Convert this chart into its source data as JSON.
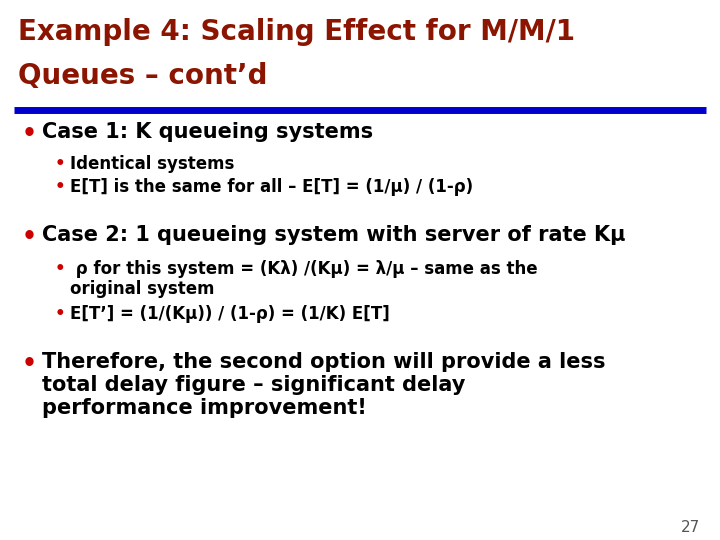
{
  "title_line1": "Example 4: Scaling Effect for M/M/1",
  "title_line2": "Queues – cont’d",
  "title_color": "#8B1500",
  "separator_color": "#0000CC",
  "background_color": "#FFFFFF",
  "bullet_color": "#CC0000",
  "text_color": "#000000",
  "page_number": "27",
  "bullet1": "Case 1: K queueing systems",
  "bullet1_sub1": "Identical systems",
  "bullet1_sub2": "E[T] is the same for all – E[T] = (1/μ) / (1-ρ)",
  "bullet2": "Case 2: 1 queueing system with server of rate Kμ",
  "bullet2_sub1a": " ρ for this system = (Kλ) /(Kμ) = λ/μ – same as the",
  "bullet2_sub1b": "original system",
  "bullet2_sub2": "E[T’] = (1/(Kμ)) / (1-ρ) = (1/K) E[T]",
  "bullet3a": "Therefore, the second option will provide a less",
  "bullet3b": "total delay figure – significant delay",
  "bullet3c": "performance improvement!",
  "title_fontsize": 20,
  "bullet_main_fontsize": 15,
  "bullet_sub_fontsize": 12,
  "bullet3_fontsize": 15
}
